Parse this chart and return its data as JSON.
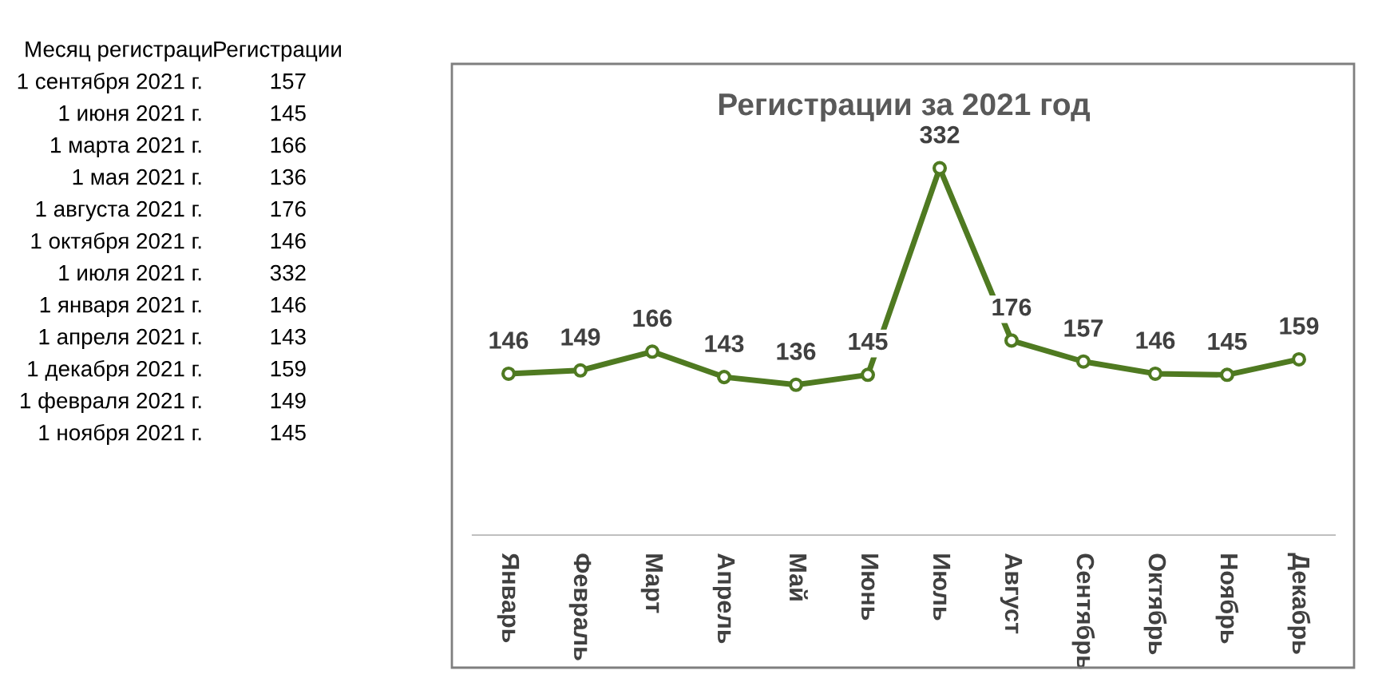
{
  "chart_data": {
    "type": "line",
    "title": "Регистрации за 2021 год",
    "categories": [
      "Январь",
      "Февраль",
      "Март",
      "Апрель",
      "Май",
      "Июнь",
      "Июль",
      "Август",
      "Сентябрь",
      "Октябрь",
      "Ноябрь",
      "Декабрь"
    ],
    "series": [
      {
        "color": "#4f7a21",
        "values": [
          146,
          149,
          166,
          143,
          136,
          145,
          332,
          176,
          157,
          146,
          145,
          159
        ]
      }
    ],
    "data_labels": true,
    "marker": "circle",
    "line_style": "solid",
    "grid": false,
    "legend": false,
    "tick_labels": "x",
    "annotations": [
      "Месяц регистраци",
      "Регистрации",
      "1 сентября 2021 г.",
      "157",
      "1 июня 2021 г.",
      "145",
      "1 марта 2021 г.",
      "166",
      "1 мая 2021 г.",
      "136",
      "1 августа 2021 г.",
      "176",
      "1 октября 2021 г.",
      "146",
      "1 июля 2021 г.",
      "332",
      "1 января 2021 г.",
      "146",
      "1 апреля 2021 г.",
      "143",
      "1 декабря 2021 г.",
      "159",
      "1 февраля 2021 г.",
      "149",
      "1 ноября 2021 г.",
      "145"
    ]
  }
}
